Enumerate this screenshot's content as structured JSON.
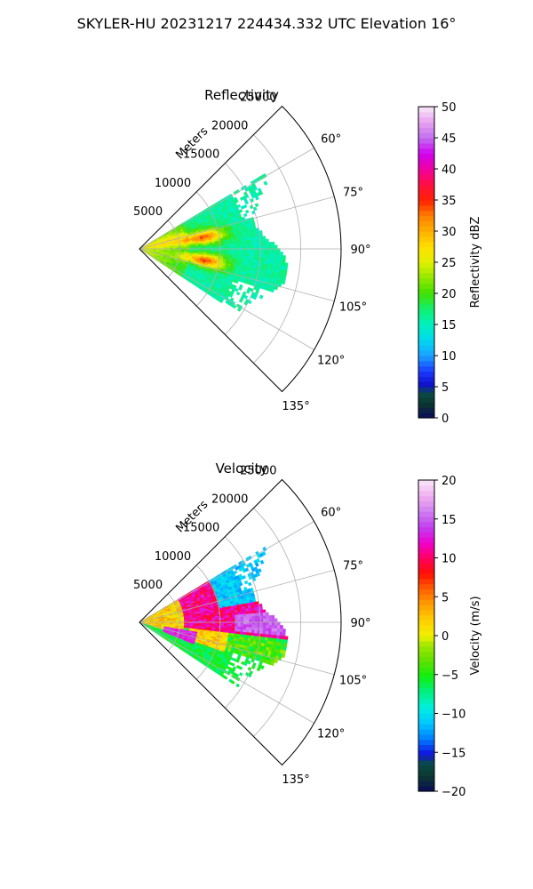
{
  "figure": {
    "title": "SKYLER-HU  20231217  224434.332 UTC Elevation 16°"
  },
  "chart_data": [
    {
      "type": "heatmap",
      "projection": "polar-sector",
      "title": "Reflectivity",
      "radial_label": "Meters",
      "radial_ticks": [
        5000,
        10000,
        15000,
        20000,
        25000
      ],
      "radial_tick_labels": [
        "5000",
        "10000",
        "15000",
        "20000",
        "25000"
      ],
      "rlim": [
        0,
        25000
      ],
      "angle_ticks": [
        60,
        75,
        90,
        105,
        120,
        135
      ],
      "angle_tick_labels": [
        "60°",
        "75°",
        "90°",
        "105°",
        "120°",
        "135°"
      ],
      "theta_range_deg": [
        45,
        135
      ],
      "grid": true,
      "colorbar": {
        "label": "Reflectivity dBZ",
        "range": [
          0,
          50
        ],
        "ticks": [
          0,
          5,
          10,
          15,
          20,
          25,
          30,
          35,
          40,
          45,
          50
        ],
        "tick_labels": [
          "0",
          "5",
          "10",
          "15",
          "20",
          "25",
          "30",
          "35",
          "40",
          "45",
          "50"
        ],
        "colormap": "pyart_HomeyerRainbow"
      },
      "features": [
        {
          "description_value": 17,
          "region": "broad echo 0–15000 m, 60°–120°"
        },
        {
          "description_value": 32,
          "region": "core near 8000 m, ~80°"
        },
        {
          "description_value": 34,
          "region": "core near 8000 m, ~100°"
        }
      ]
    },
    {
      "type": "heatmap",
      "projection": "polar-sector",
      "title": "Velocity",
      "radial_label": "Meters",
      "radial_ticks": [
        5000,
        10000,
        15000,
        20000,
        25000
      ],
      "radial_tick_labels": [
        "5000",
        "10000",
        "15000",
        "20000",
        "25000"
      ],
      "rlim": [
        0,
        25000
      ],
      "angle_ticks": [
        60,
        75,
        90,
        105,
        120,
        135
      ],
      "angle_tick_labels": [
        "60°",
        "75°",
        "90°",
        "105°",
        "120°",
        "135°"
      ],
      "theta_range_deg": [
        45,
        135
      ],
      "grid": true,
      "colorbar": {
        "label": "Velocity (m/s)",
        "range": [
          -20,
          20
        ],
        "ticks": [
          -20,
          -15,
          -10,
          -5,
          0,
          5,
          10,
          15,
          20
        ],
        "tick_labels": [
          "−20",
          "−15",
          "−10",
          "−5",
          "0",
          "5",
          "10",
          "15",
          "20"
        ],
        "colormap": "pyart_BuDRd18-like"
      },
      "features": [
        {
          "description_value": -10,
          "region": "outer far 60°–80°"
        },
        {
          "description_value": 12,
          "region": "mid-range 75°–95°"
        },
        {
          "description_value": 2,
          "region": "near-radar 90°–110°"
        },
        {
          "description_value": -6,
          "region": "outer 100°–120°"
        }
      ]
    }
  ],
  "colors": {
    "grid": "#b0b0b0",
    "outline": "#000000"
  }
}
